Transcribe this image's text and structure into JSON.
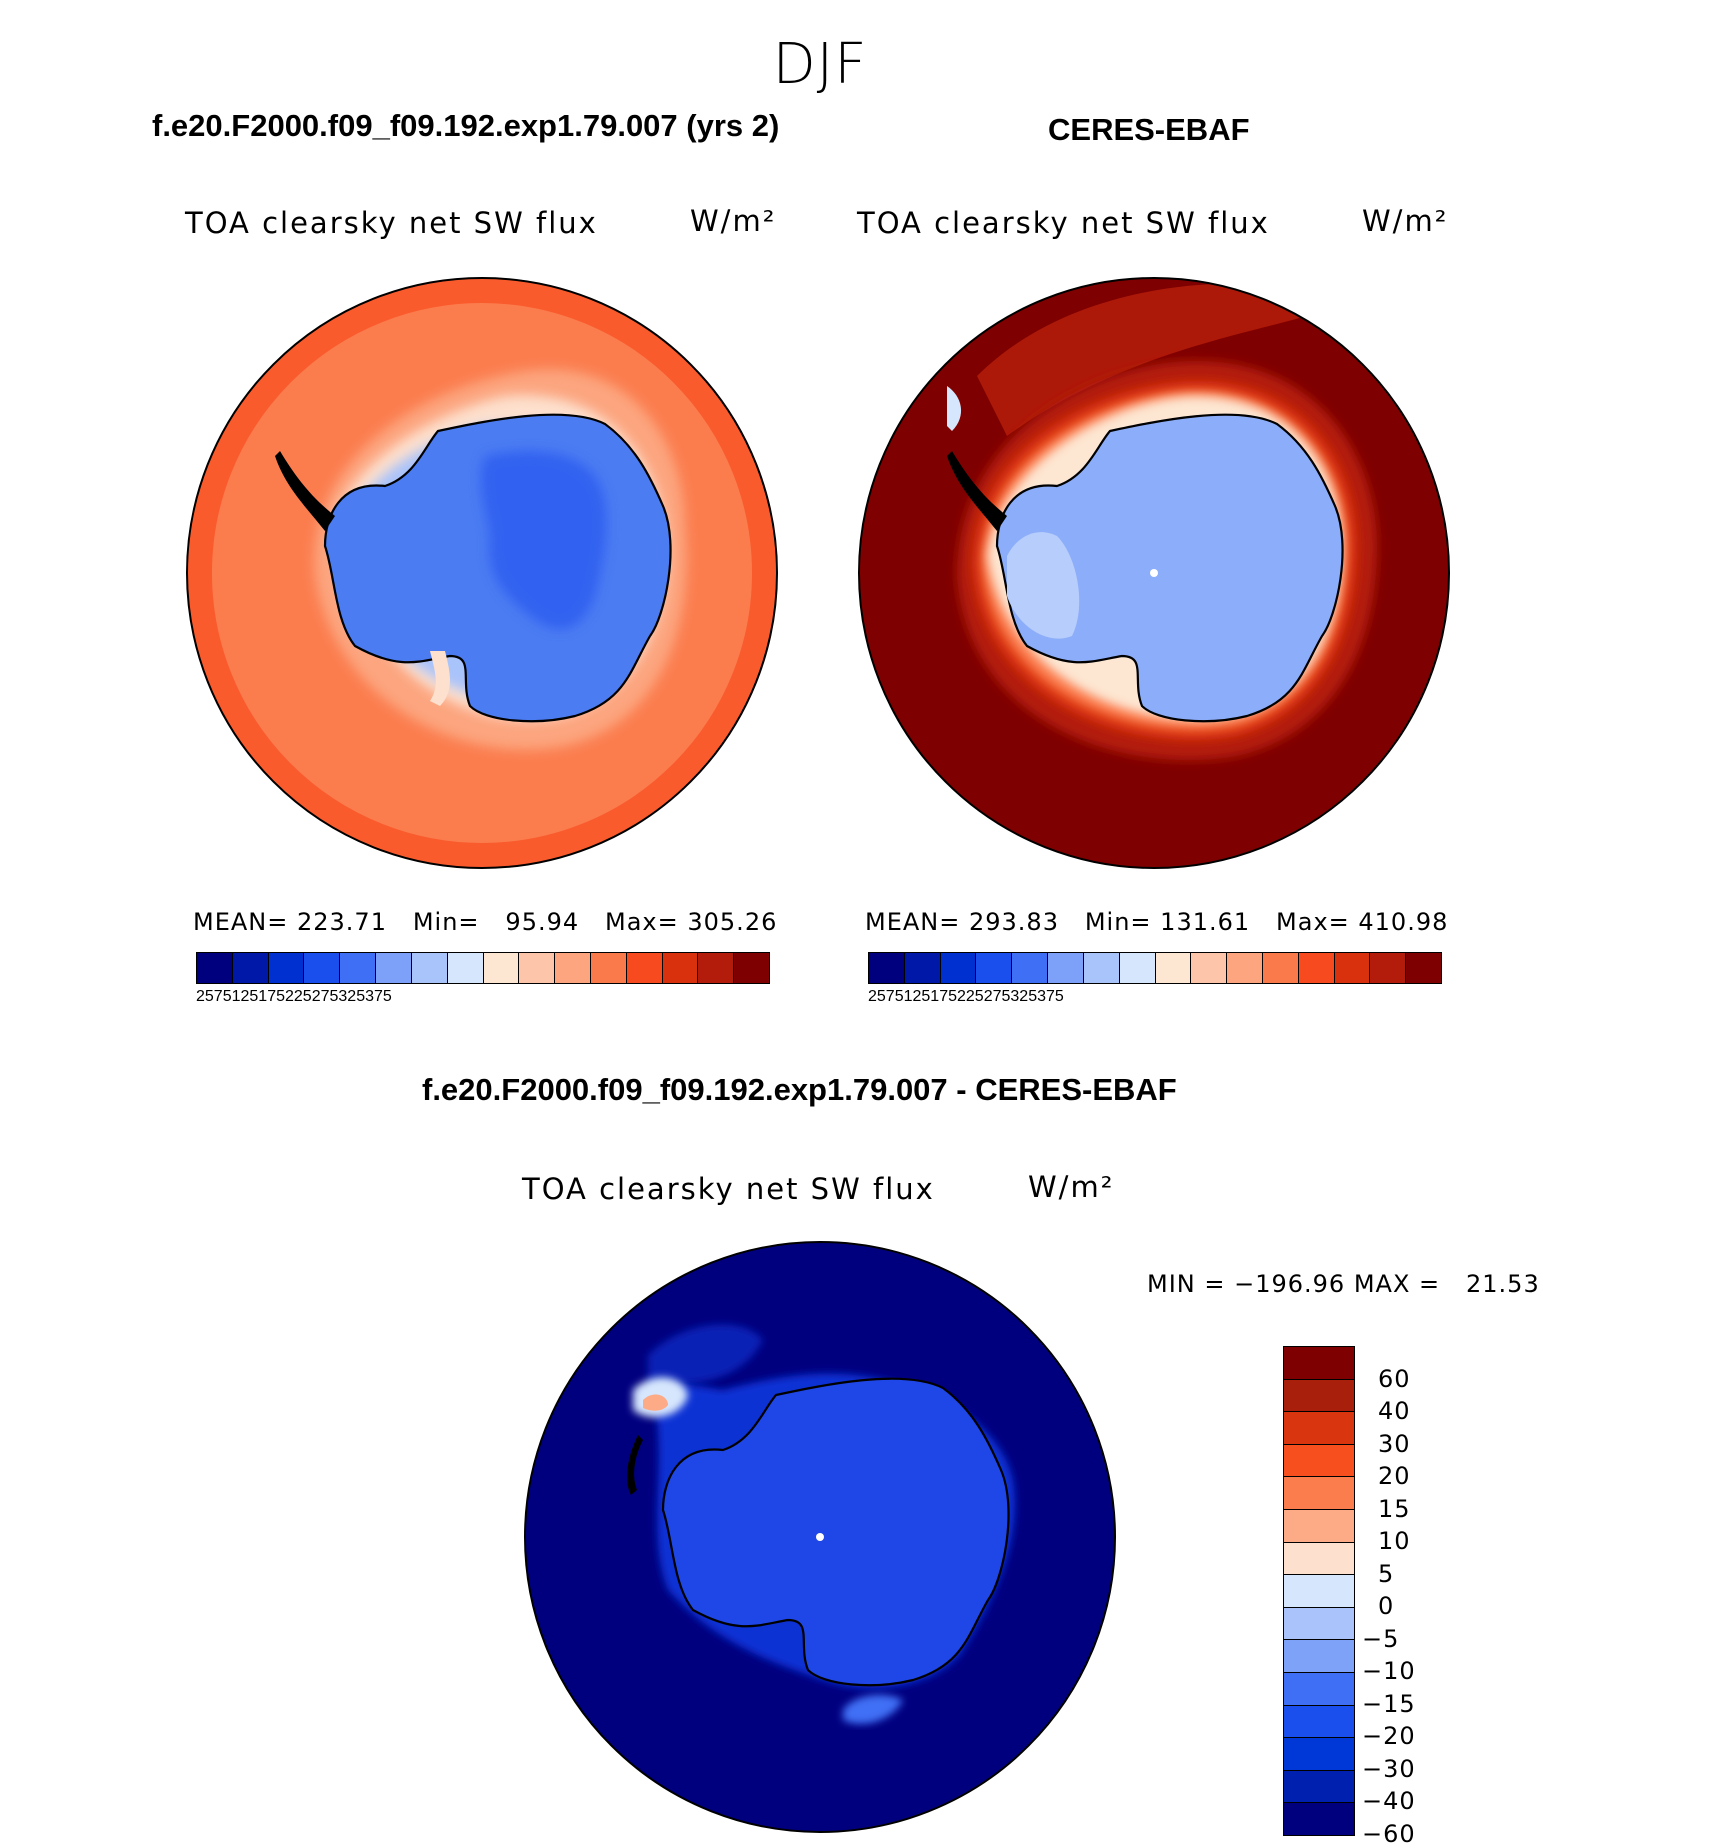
{
  "figure": {
    "season": "DJF"
  },
  "panel_model": {
    "case_title": "f.e20.F2000.f09_f09.192.exp1.79.007 (yrs 2)",
    "variable": "TOA clearsky net SW flux",
    "units": "W/m²",
    "stats": "MEAN= 223.71   Min=   95.94   Max= 305.26",
    "mean": 223.71,
    "min": 95.94,
    "max": 305.26
  },
  "panel_obs": {
    "case_title": "CERES-EBAF",
    "variable": "TOA clearsky net SW flux",
    "units": "W/m²",
    "stats": "MEAN= 293.83   Min= 131.61   Max= 410.98",
    "mean": 293.83,
    "min": 131.61,
    "max": 410.98
  },
  "panel_diff": {
    "case_title": "f.e20.F2000.f09_f09.192.exp1.79.007 - CERES-EBAF",
    "variable": "TOA clearsky net SW flux",
    "units": "W/m²",
    "stats": "MIN = −196.96 MAX =   21.53",
    "min": -196.96,
    "max": 21.53
  },
  "colorbar_abs": {
    "colors": [
      "#00007f",
      "#0018a8",
      "#0030d0",
      "#1a4fee",
      "#3f6ff5",
      "#7da1f8",
      "#a9c3fb",
      "#d6e6fd",
      "#fde6d2",
      "#fdc6ab",
      "#fca57f",
      "#fb7a4b",
      "#f84a1f",
      "#d9300e",
      "#b31c0a",
      "#7f0000"
    ],
    "tick_labels": [
      "25",
      "75",
      "125",
      "175",
      "225",
      "275",
      "325",
      "375"
    ]
  },
  "colorbar_diff": {
    "colors": [
      "#7f0000",
      "#a8200c",
      "#d9350f",
      "#f84f1f",
      "#fb7d4e",
      "#fcab86",
      "#fde0cd",
      "#d6e6fd",
      "#aac4fb",
      "#7da2f8",
      "#3f6ff5",
      "#1a4fee",
      "#0038d8",
      "#0020b0",
      "#00007f"
    ],
    "tick_labels": [
      "60",
      "40",
      "30",
      "20",
      "15",
      "10",
      "5",
      "0",
      "−5",
      "−10",
      "−15",
      "−20",
      "−30",
      "−40",
      "−60"
    ]
  }
}
